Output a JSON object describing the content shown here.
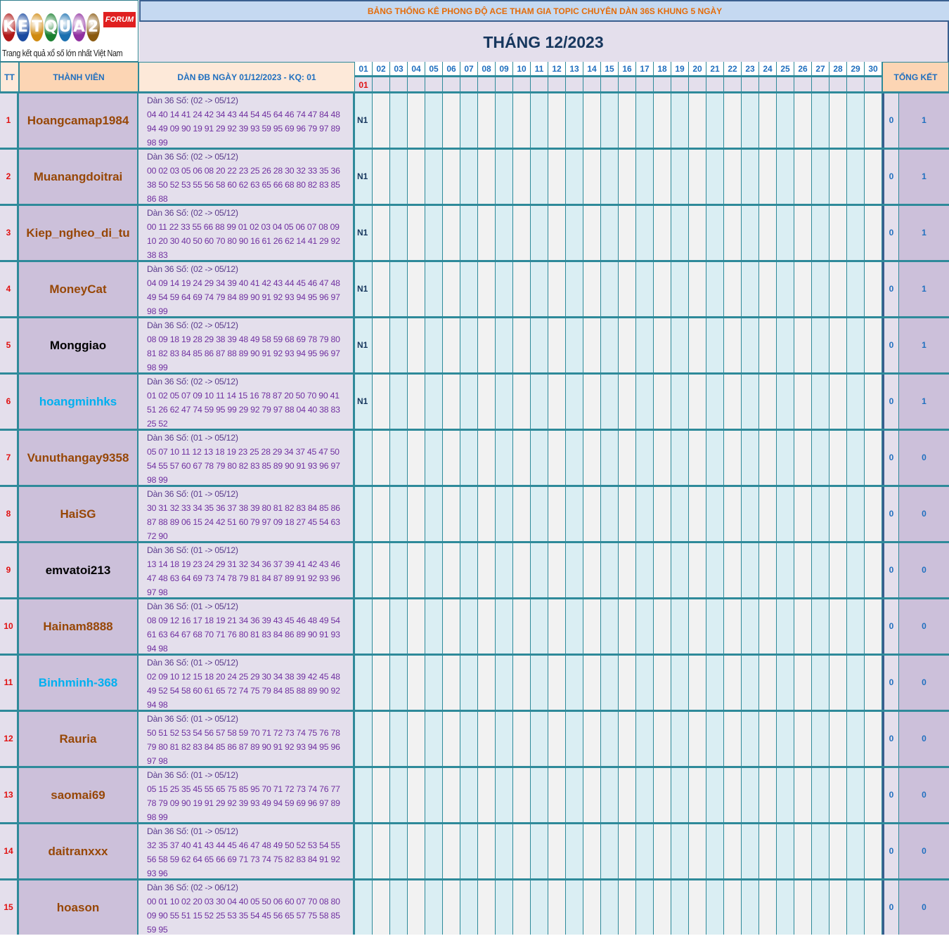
{
  "logo": {
    "letters": [
      "K",
      "E",
      "T",
      "Q",
      "U",
      "A",
      "2"
    ],
    "forum": "FORUM",
    "tagline": "Trang kết quả xổ số lớn nhất Việt Nam"
  },
  "header": {
    "title": "BẢNG THỐNG KÊ PHONG ĐỘ ACE THAM GIA TOPIC CHUYÊN DÀN 36S KHUNG 5 NGÀY",
    "month": "THÁNG 12/2023",
    "tt": "TT",
    "member": "THÀNH VIÊN",
    "dan": "DÀN ĐB NGÀY 01/12/2023 - KQ: 01",
    "total": "TỔNG KẾT",
    "days": [
      "01",
      "02",
      "03",
      "04",
      "05",
      "06",
      "07",
      "08",
      "09",
      "10",
      "11",
      "12",
      "13",
      "14",
      "15",
      "16",
      "17",
      "18",
      "19",
      "20",
      "21",
      "22",
      "23",
      "24",
      "25",
      "26",
      "27",
      "28",
      "29",
      "30"
    ],
    "results": [
      "01"
    ]
  },
  "colors": {
    "brown": "#974706",
    "black": "#000000",
    "cyan": "#00b0f0",
    "odd_day": "#daeef3",
    "even_day": "#f2f2f2"
  },
  "rows": [
    {
      "tt": "1",
      "name": "Hoangcamap1984",
      "color": "brown",
      "dan_header": "Dàn 36 Số: (02 -> 05/12)",
      "lines": [
        "04 40 14 41 24 42 34 43 44 54 45 64 46 74 47 84 48",
        "94 49 09 90 19 91 29 92 39 93 59 95 69 96 79 97 89",
        "98 99"
      ],
      "day1": "N1",
      "t1": "0",
      "t2": "1"
    },
    {
      "tt": "2",
      "name": "Muanangdoitrai",
      "color": "brown",
      "dan_header": "Dàn 36 Số: (02 -> 05/12)",
      "lines": [
        "00 02 03 05 06 08 20 22 23 25 26 28 30 32 33 35 36",
        "38 50 52 53 55 56 58 60 62 63 65 66 68 80 82 83 85",
        "86 88"
      ],
      "day1": "N1",
      "t1": "0",
      "t2": "1"
    },
    {
      "tt": "3",
      "name": "Kiep_ngheo_di_tu",
      "color": "brown",
      "dan_header": "Dàn 36 Số: (02 -> 05/12)",
      "lines": [
        "00 11 22 33 55 66 88 99 01 02 03 04 05 06 07 08 09",
        "10 20 30 40 50 60 70 80 90 16 61 26 62 14 41 29 92",
        "38 83"
      ],
      "day1": "N1",
      "t1": "0",
      "t2": "1"
    },
    {
      "tt": "4",
      "name": "MoneyCat",
      "color": "brown",
      "dan_header": "Dàn 36 Số: (02 -> 05/12)",
      "lines": [
        "04 09 14 19 24 29 34 39 40 41 42 43 44 45 46 47 48",
        "49 54 59 64 69 74 79 84 89 90 91 92 93 94 95 96 97",
        "98 99"
      ],
      "day1": "N1",
      "t1": "0",
      "t2": "1"
    },
    {
      "tt": "5",
      "name": "Monggiao",
      "color": "black",
      "dan_header": "Dàn 36 Số: (02 -> 05/12)",
      "lines": [
        "08 09 18 19 28 29 38 39 48 49 58 59 68 69 78 79 80",
        "81 82 83 84 85 86 87 88 89 90 91 92 93 94 95 96 97",
        "98 99"
      ],
      "day1": "N1",
      "t1": "0",
      "t2": "1"
    },
    {
      "tt": "6",
      "name": "hoangminhks",
      "color": "cyan",
      "dan_header": "Dàn 36 Số: (02 -> 05/12)",
      "lines": [
        "01 02 05 07 09 10 11 14 15 16 78 87 20 50 70 90 41",
        "51 26 62 47 74 59 95 99 29 92 79 97 88 04 40 38 83",
        "25 52"
      ],
      "day1": "N1",
      "t1": "0",
      "t2": "1"
    },
    {
      "tt": "7",
      "name": "Vunuthangay9358",
      "color": "brown",
      "dan_header": "Dàn 36 Số: (01 -> 05/12)",
      "lines": [
        "05 07 10 11 12 13 18 19 23 25 28 29 34 37 45 47 50",
        "54 55 57 60 67 78 79 80 82 83 85 89 90 91 93 96 97",
        "98 99"
      ],
      "day1": "",
      "t1": "0",
      "t2": "0"
    },
    {
      "tt": "8",
      "name": "HaiSG",
      "color": "brown",
      "dan_header": "Dàn 36 Số: (01 -> 05/12)",
      "lines": [
        "30 31 32 33 34 35 36 37 38 39 80 81 82 83 84 85 86",
        "87 88 89 06 15 24 42 51 60 79 97 09 18 27 45 54 63",
        "72 90"
      ],
      "day1": "",
      "t1": "0",
      "t2": "0"
    },
    {
      "tt": "9",
      "name": "emvatoi213",
      "color": "black",
      "dan_header": "Dàn 36 Số: (01 -> 05/12)",
      "lines": [
        "13 14 18 19 23 24 29 31 32 34 36 37 39 41 42 43 46",
        "47 48 63 64 69 73 74 78 79 81 84 87 89 91 92 93 96",
        "97 98"
      ],
      "day1": "",
      "t1": "0",
      "t2": "0"
    },
    {
      "tt": "10",
      "name": "Hainam8888",
      "color": "brown",
      "dan_header": "Dàn 36 Số: (01 -> 05/12)",
      "lines": [
        "08 09 12 16 17 18 19 21 34 36 39 43 45 46 48 49 54",
        "61 63 64 67 68 70 71 76 80 81 83 84 86 89 90 91 93",
        "94 98"
      ],
      "day1": "",
      "t1": "0",
      "t2": "0"
    },
    {
      "tt": "11",
      "name": "Binhminh-368",
      "color": "cyan",
      "dan_header": "Dàn 36 Số: (01 -> 05/12)",
      "lines": [
        "02 09 10 12 15 18 20 24 25 29 30 34 38 39 42 45 48",
        "49 52 54 58 60 61 65 72 74 75 79 84 85 88 89 90 92",
        "94 98"
      ],
      "day1": "",
      "t1": "0",
      "t2": "0"
    },
    {
      "tt": "12",
      "name": "Rauria",
      "color": "brown",
      "dan_header": "Dàn 36 Số: (01 -> 05/12)",
      "lines": [
        "50 51 52 53 54 56 57 58 59 70 71 72 73 74 75 76 78",
        "79 80 81 82 83 84 85 86 87 89 90 91 92 93 94 95 96",
        "97 98"
      ],
      "day1": "",
      "t1": "0",
      "t2": "0"
    },
    {
      "tt": "13",
      "name": "saomai69",
      "color": "brown",
      "dan_header": "Dàn 36 Số: (01 -> 05/12)",
      "lines": [
        "05 15 25 35 45 55 65 75 85 95 70 71 72 73 74 76 77",
        "78 79 09 90 19 91 29 92 39 93 49 94 59 69 96 97 89",
        "98 99"
      ],
      "day1": "",
      "t1": "0",
      "t2": "0"
    },
    {
      "tt": "14",
      "name": "daitranxxx",
      "color": "brown",
      "dan_header": "Dàn 36 Số: (01 -> 05/12)",
      "lines": [
        "32 35 37 40 41 43 44 45 46 47 48 49 50 52 53 54 55",
        "56 58 59 62 64 65 66 69 71 73 74 75 82 83 84 91 92",
        "93 96"
      ],
      "day1": "",
      "t1": "0",
      "t2": "0"
    },
    {
      "tt": "15",
      "name": "hoason",
      "color": "brown",
      "dan_header": "Dàn 36 Số: (02 -> 06/12)",
      "lines": [
        "00 01 10 02 20 03 30 04 40 05 50 06 60 07 70 08 80",
        "09 90 55 51 15 52 25 53 35 54 45 56 65 57 75 58 85",
        "59 95"
      ],
      "day1": "",
      "t1": "0",
      "t2": "0"
    }
  ]
}
